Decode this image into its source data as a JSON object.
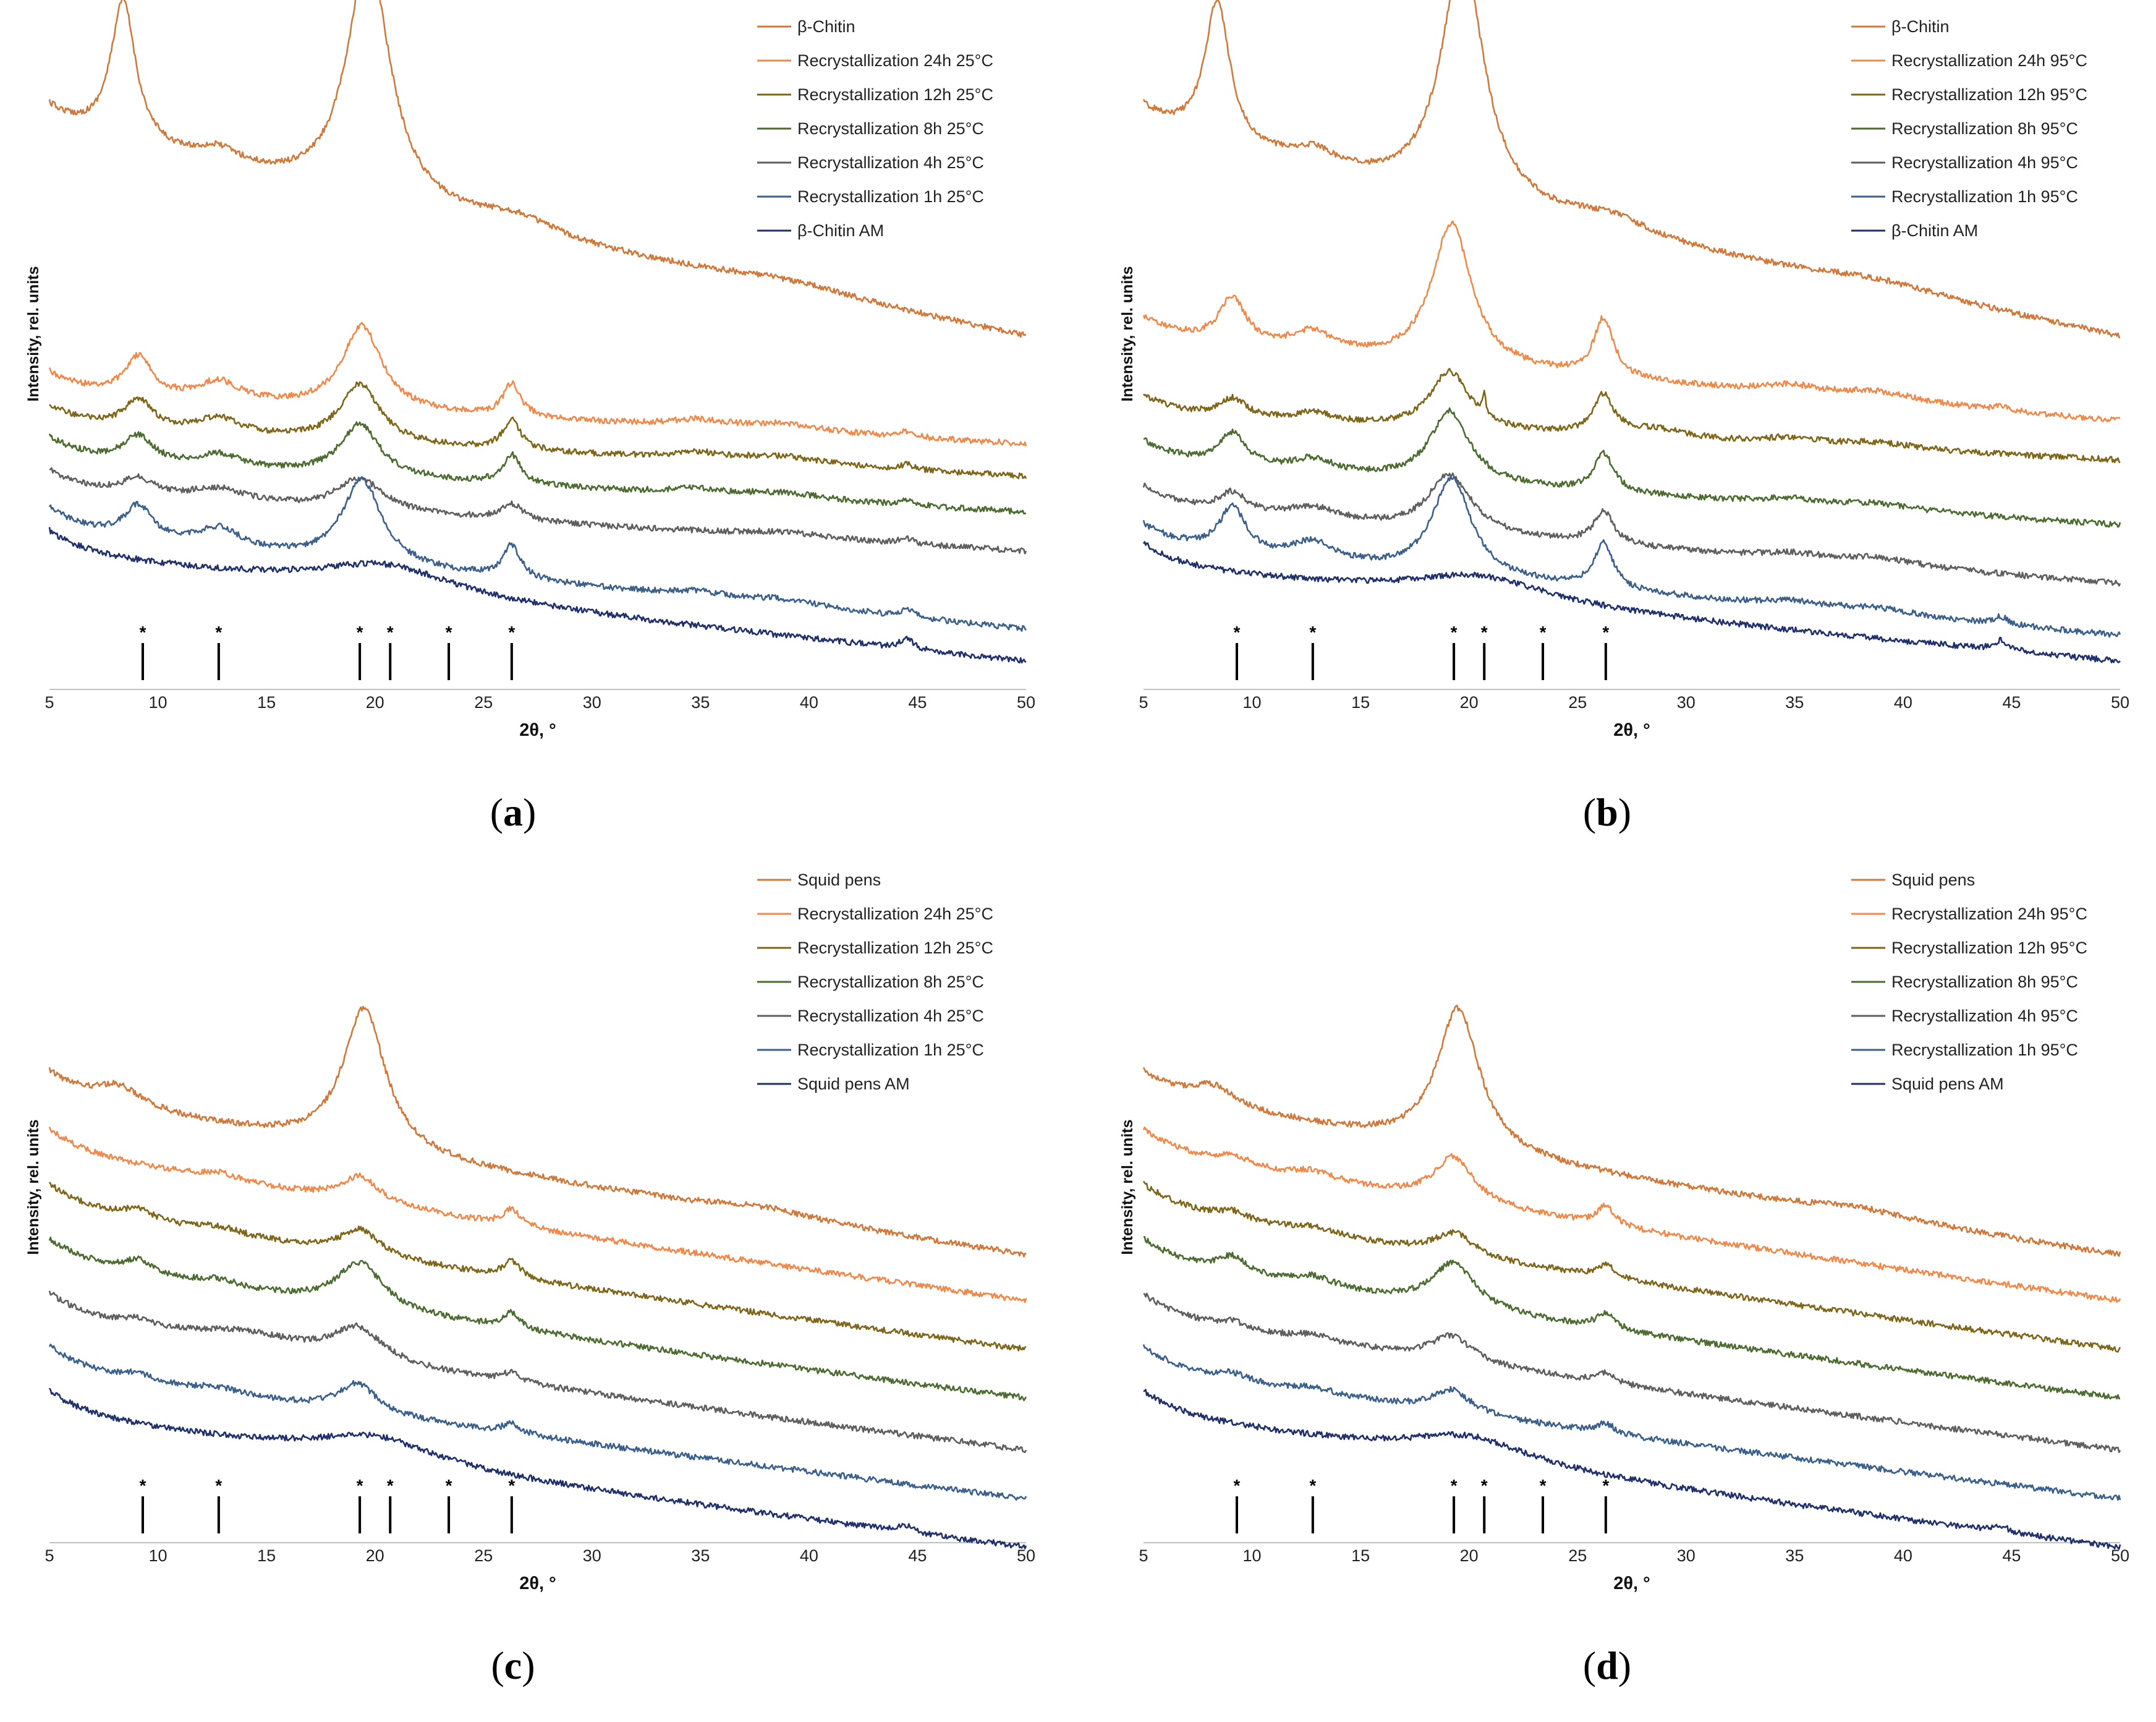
{
  "chart_data": [
    {
      "id": "a",
      "type": "line",
      "panel_label": "(a)",
      "panel_label_parts": [
        "(",
        "a",
        ")"
      ],
      "xlabel": "2θ, °",
      "ylabel": "Intensity, rel. units",
      "xlim": [
        5,
        50
      ],
      "xticks": [
        5,
        10,
        15,
        20,
        25,
        30,
        35,
        40,
        45,
        50
      ],
      "reference_peaks": [
        9.3,
        12.8,
        19.3,
        20.7,
        23.4,
        26.3
      ],
      "reference_marker": "*",
      "series": [
        {
          "name": "β-Chitin",
          "color": "#D0773A",
          "baseline": [
            0.18,
            0.5
          ],
          "peaks": [
            [
              8.4,
              0.22,
              0.7
            ],
            [
              12.8,
              0.025,
              1.3
            ],
            [
              19.7,
              0.38,
              1.2
            ],
            [
              26.5,
              0.025,
              2.2
            ],
            [
              39,
              0.015,
              4
            ]
          ]
        },
        {
          "name": "Recrystallization 24h 25°C",
          "color": "#F0884A",
          "baseline": [
            0.585,
            0.665
          ],
          "peaks": [
            [
              9.1,
              0.06,
              0.75
            ],
            [
              12.8,
              0.03,
              1.2
            ],
            [
              19.4,
              0.13,
              1.1
            ],
            [
              26.3,
              0.05,
              0.5
            ],
            [
              34.8,
              0.01,
              1.5
            ],
            [
              38.8,
              0.012,
              2.5
            ],
            [
              44.5,
              0.008,
              0.4
            ]
          ]
        },
        {
          "name": "Recrystallization 12h 25°C",
          "color": "#7E6518",
          "baseline": [
            0.635,
            0.715
          ],
          "peaks": [
            [
              9.1,
              0.045,
              0.8
            ],
            [
              12.8,
              0.025,
              1.2
            ],
            [
              19.3,
              0.09,
              1.1
            ],
            [
              26.3,
              0.045,
              0.5
            ],
            [
              34.8,
              0.01,
              1.5
            ],
            [
              38.8,
              0.012,
              2.5
            ],
            [
              44.5,
              0.008,
              0.4
            ]
          ]
        },
        {
          "name": "Recrystallization 8h 25°C",
          "color": "#4C6B30",
          "baseline": [
            0.685,
            0.77
          ],
          "peaks": [
            [
              9.1,
              0.04,
              0.8
            ],
            [
              12.8,
              0.02,
              1.2
            ],
            [
              19.3,
              0.08,
              1.1
            ],
            [
              26.3,
              0.045,
              0.5
            ],
            [
              34.8,
              0.008,
              1.5
            ],
            [
              38.8,
              0.01,
              2.5
            ],
            [
              44.5,
              0.008,
              0.4
            ]
          ]
        },
        {
          "name": "Recrystallization 4h 25°C",
          "color": "#5E5E5E",
          "baseline": [
            0.735,
            0.83
          ],
          "peaks": [
            [
              9.1,
              0.025,
              0.9
            ],
            [
              12.8,
              0.02,
              1.5
            ],
            [
              19.3,
              0.05,
              1.3
            ],
            [
              26.3,
              0.025,
              0.6
            ],
            [
              38.8,
              0.008,
              2.5
            ],
            [
              44.5,
              0.008,
              0.4
            ]
          ]
        },
        {
          "name": "Recrystallization 1h 25°C",
          "color": "#3A5F8A",
          "baseline": [
            0.795,
            0.95
          ],
          "peaks": [
            [
              9.1,
              0.05,
              0.75
            ],
            [
              12.8,
              0.03,
              1.2
            ],
            [
              19.4,
              0.13,
              1.1
            ],
            [
              26.3,
              0.05,
              0.5
            ],
            [
              34.8,
              0.008,
              1.5
            ],
            [
              38.8,
              0.01,
              2.5
            ],
            [
              44.5,
              0.012,
              0.4
            ]
          ]
        },
        {
          "name": "β-Chitin AM",
          "color": "#1F2F6B",
          "baseline": [
            0.83,
            1.0
          ],
          "peaks": [
            [
              20.5,
              0.045,
              4
            ],
            [
              44.5,
              0.015,
              0.4
            ]
          ]
        }
      ]
    },
    {
      "id": "b",
      "type": "line",
      "panel_label": "(b)",
      "panel_label_parts": [
        "(",
        "b",
        ")"
      ],
      "xlabel": "2θ, °",
      "ylabel": "Intensity, rel. units",
      "xlim": [
        5,
        50
      ],
      "xticks": [
        5,
        10,
        15,
        20,
        25,
        30,
        35,
        40,
        45,
        50
      ],
      "reference_peaks": [
        9.3,
        12.8,
        19.3,
        20.7,
        23.4,
        26.3
      ],
      "reference_marker": "*",
      "series": [
        {
          "name": "β-Chitin",
          "color": "#D0773A",
          "baseline": [
            0.18,
            0.5
          ],
          "peaks": [
            [
              8.4,
              0.22,
              0.7
            ],
            [
              12.8,
              0.025,
              1.3
            ],
            [
              19.7,
              0.38,
              1.2
            ],
            [
              26.5,
              0.025,
              2.2
            ],
            [
              39,
              0.015,
              4
            ]
          ]
        },
        {
          "name": "Recrystallization 24h 95°C",
          "color": "#F0884A",
          "baseline": [
            0.5,
            0.63
          ],
          "peaks": [
            [
              9.1,
              0.07,
              0.75
            ],
            [
              12.8,
              0.03,
              1.2
            ],
            [
              19.2,
              0.22,
              1.1
            ],
            [
              26.2,
              0.09,
              0.55
            ],
            [
              34.8,
              0.012,
              1.5
            ],
            [
              38.8,
              0.015,
              2.5
            ],
            [
              44.5,
              0.008,
              0.4
            ]
          ]
        },
        {
          "name": "Recrystallization 12h 95°C",
          "color": "#7E6518",
          "baseline": [
            0.62,
            0.69
          ],
          "peaks": [
            [
              9.1,
              0.03,
              0.8
            ],
            [
              12.8,
              0.015,
              1.2
            ],
            [
              19.1,
              0.09,
              1.1
            ],
            [
              20.7,
              0.035,
              0.08
            ],
            [
              26.2,
              0.06,
              0.55
            ],
            [
              28.5,
              0.015,
              2
            ],
            [
              34.8,
              0.01,
              1.5
            ],
            [
              38.8,
              0.01,
              2.5
            ]
          ]
        },
        {
          "name": "Recrystallization 8h 95°C",
          "color": "#4C6B30",
          "baseline": [
            0.69,
            0.79
          ],
          "peaks": [
            [
              9.1,
              0.05,
              0.75
            ],
            [
              12.8,
              0.02,
              1.2
            ],
            [
              19.1,
              0.11,
              1.1
            ],
            [
              26.2,
              0.06,
              0.55
            ],
            [
              34.8,
              0.008,
              1.5
            ],
            [
              38.8,
              0.01,
              2.5
            ]
          ]
        },
        {
          "name": "Recrystallization 4h 95°C",
          "color": "#5E5E5E",
          "baseline": [
            0.76,
            0.88
          ],
          "peaks": [
            [
              9.1,
              0.03,
              0.8
            ],
            [
              12.8,
              0.02,
              1.5
            ],
            [
              19.1,
              0.09,
              1.2
            ],
            [
              26.2,
              0.05,
              0.55
            ],
            [
              34.8,
              0.008,
              1.5
            ],
            [
              38.8,
              0.012,
              2.5
            ]
          ]
        },
        {
          "name": "Recrystallization 1h 95°C",
          "color": "#3A5F8A",
          "baseline": [
            0.82,
            0.96
          ],
          "peaks": [
            [
              9.1,
              0.07,
              0.75
            ],
            [
              12.8,
              0.03,
              1.2
            ],
            [
              19.2,
              0.15,
              1.1
            ],
            [
              26.2,
              0.07,
              0.55
            ],
            [
              34.8,
              0.008,
              1.5
            ],
            [
              38.8,
              0.01,
              2.5
            ],
            [
              44.5,
              0.012,
              0.4
            ]
          ]
        },
        {
          "name": "β-Chitin AM",
          "color": "#1F2F6B",
          "baseline": [
            0.85,
            1.0
          ],
          "peaks": [
            [
              20.5,
              0.04,
              4
            ],
            [
              44.5,
              0.015,
              0.4
            ]
          ]
        }
      ]
    },
    {
      "id": "c",
      "type": "line",
      "panel_label": "(c)",
      "panel_label_parts": [
        "(",
        "c",
        ")"
      ],
      "xlabel": "2θ, °",
      "ylabel": "Intensity, rel. units",
      "xlim": [
        5,
        50
      ],
      "xticks": [
        5,
        10,
        15,
        20,
        25,
        30,
        35,
        40,
        45,
        50
      ],
      "reference_peaks": [
        9.3,
        12.8,
        19.3,
        20.7,
        23.4,
        26.3
      ],
      "reference_marker": "*",
      "series": [
        {
          "name": "Squid pens",
          "color": "#D0773A",
          "baseline": [
            0.35,
            0.6
          ],
          "peaks": [
            [
              8.2,
              0.03,
              1.3
            ],
            [
              19.5,
              0.22,
              1.2
            ],
            [
              38,
              0.012,
              3
            ]
          ]
        },
        {
          "name": "Recrystallization 24h 25°C",
          "color": "#F0884A",
          "baseline": [
            0.435,
            0.67
          ],
          "peaks": [
            [
              12.8,
              0.01,
              1.2
            ],
            [
              19.3,
              0.04,
              1.1
            ],
            [
              26.3,
              0.025,
              0.5
            ]
          ]
        },
        {
          "name": "Recrystallization 12h 25°C",
          "color": "#7E6518",
          "baseline": [
            0.52,
            0.745
          ],
          "peaks": [
            [
              9.1,
              0.015,
              0.8
            ],
            [
              12.8,
              0.01,
              1.2
            ],
            [
              19.3,
              0.04,
              1.1
            ],
            [
              26.3,
              0.025,
              0.5
            ]
          ]
        },
        {
          "name": "Recrystallization 8h 25°C",
          "color": "#4C6B30",
          "baseline": [
            0.605,
            0.82
          ],
          "peaks": [
            [
              9.1,
              0.02,
              0.8
            ],
            [
              12.8,
              0.01,
              1.2
            ],
            [
              19.3,
              0.07,
              1.3
            ],
            [
              26.3,
              0.025,
              0.5
            ]
          ]
        },
        {
          "name": "Recrystallization 4h 25°C",
          "color": "#5E5E5E",
          "baseline": [
            0.69,
            0.9
          ],
          "peaks": [
            [
              9.1,
              0.01,
              0.8
            ],
            [
              14,
              0.02,
              3
            ],
            [
              19.2,
              0.05,
              1.4
            ],
            [
              26.3,
              0.015,
              0.5
            ]
          ]
        },
        {
          "name": "Recrystallization 1h 25°C",
          "color": "#3A5F8A",
          "baseline": [
            0.77,
            0.975
          ],
          "peaks": [
            [
              9.1,
              0.01,
              0.8
            ],
            [
              12.8,
              0.008,
              1.2
            ],
            [
              19.2,
              0.045,
              1.1
            ],
            [
              26.3,
              0.015,
              0.5
            ]
          ]
        },
        {
          "name": "Squid pens AM",
          "color": "#1F2F6B",
          "baseline": [
            0.84,
            1.05
          ],
          "peaks": [
            [
              20,
              0.04,
              3.5
            ],
            [
              44.5,
              0.01,
              0.4
            ]
          ]
        }
      ]
    },
    {
      "id": "d",
      "type": "line",
      "panel_label": "(d)",
      "panel_label_parts": [
        "(",
        "d",
        ")"
      ],
      "xlabel": "2θ, °",
      "ylabel": "Intensity, rel. units",
      "xlim": [
        5,
        50
      ],
      "xticks": [
        5,
        10,
        15,
        20,
        25,
        30,
        35,
        40,
        45,
        50
      ],
      "reference_peaks": [
        9.3,
        12.8,
        19.3,
        20.7,
        23.4,
        26.3
      ],
      "reference_marker": "*",
      "series": [
        {
          "name": "Squid pens",
          "color": "#D0773A",
          "baseline": [
            0.35,
            0.6
          ],
          "peaks": [
            [
              8.2,
              0.03,
              1.3
            ],
            [
              19.5,
              0.22,
              1.2
            ],
            [
              38,
              0.012,
              3
            ]
          ]
        },
        {
          "name": "Recrystallization 24h 95°C",
          "color": "#F0884A",
          "baseline": [
            0.435,
            0.67
          ],
          "peaks": [
            [
              9.1,
              0.015,
              0.8
            ],
            [
              12.8,
              0.012,
              1.2
            ],
            [
              19.3,
              0.07,
              1.1
            ],
            [
              26.3,
              0.03,
              0.5
            ]
          ]
        },
        {
          "name": "Recrystallization 12h 95°C",
          "color": "#7E6518",
          "baseline": [
            0.52,
            0.745
          ],
          "peaks": [
            [
              9.1,
              0.012,
              0.8
            ],
            [
              12.8,
              0.01,
              1.2
            ],
            [
              19.3,
              0.035,
              1.1
            ],
            [
              26.3,
              0.02,
              0.5
            ]
          ]
        },
        {
          "name": "Recrystallization 8h 95°C",
          "color": "#4C6B30",
          "baseline": [
            0.605,
            0.82
          ],
          "peaks": [
            [
              9.1,
              0.025,
              0.8
            ],
            [
              12.8,
              0.015,
              1.2
            ],
            [
              19.3,
              0.07,
              1.2
            ],
            [
              26.3,
              0.025,
              0.5
            ]
          ]
        },
        {
          "name": "Recrystallization 4h 95°C",
          "color": "#5E5E5E",
          "baseline": [
            0.69,
            0.9
          ],
          "peaks": [
            [
              9.1,
              0.01,
              0.8
            ],
            [
              12.8,
              0.01,
              1.2
            ],
            [
              19.2,
              0.04,
              1.2
            ],
            [
              26.3,
              0.015,
              0.5
            ]
          ]
        },
        {
          "name": "Recrystallization 1h 95°C",
          "color": "#3A5F8A",
          "baseline": [
            0.77,
            0.975
          ],
          "peaks": [
            [
              9.1,
              0.01,
              0.8
            ],
            [
              12.8,
              0.008,
              1.2
            ],
            [
              19.2,
              0.035,
              1.1
            ],
            [
              26.3,
              0.015,
              0.5
            ]
          ]
        },
        {
          "name": "Squid pens AM",
          "color": "#1F2F6B",
          "baseline": [
            0.84,
            1.05
          ],
          "peaks": [
            [
              20,
              0.04,
              3.5
            ],
            [
              44.5,
              0.01,
              0.4
            ]
          ]
        }
      ]
    }
  ]
}
